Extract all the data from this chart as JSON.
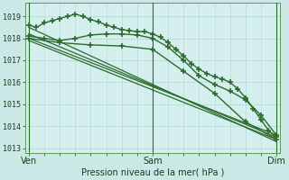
{
  "bg_color": "#cce8e6",
  "grid_color": "#b0d8d6",
  "line_color": "#2d6a2d",
  "marker_color": "#2d6a2d",
  "xlabel": "Pression niveau de la mer( hPa )",
  "xtick_labels": [
    "Ven",
    "Sam",
    "Dim"
  ],
  "xtick_positions": [
    0,
    16,
    32
  ],
  "ylim": [
    1012.8,
    1019.6
  ],
  "yticks": [
    1013,
    1014,
    1015,
    1016,
    1017,
    1018,
    1019
  ],
  "series": [
    {
      "x": [
        0,
        1,
        2,
        3,
        4,
        5,
        6,
        7,
        8,
        9,
        10,
        11,
        12,
        13,
        14,
        15,
        16,
        17,
        18,
        19,
        20,
        21,
        22,
        23,
        24,
        25,
        26,
        27,
        28,
        29,
        30,
        31,
        32
      ],
      "y": [
        1018.6,
        1018.5,
        1018.7,
        1018.8,
        1018.9,
        1019.0,
        1019.1,
        1019.0,
        1018.85,
        1018.75,
        1018.6,
        1018.5,
        1018.4,
        1018.35,
        1018.3,
        1018.3,
        1018.2,
        1018.05,
        1017.8,
        1017.5,
        1017.2,
        1016.85,
        1016.6,
        1016.4,
        1016.25,
        1016.15,
        1016.0,
        1015.7,
        1015.3,
        1014.8,
        1014.3,
        1013.8,
        1013.5
      ],
      "marker": "+",
      "linewidth": 1.0,
      "markersize": 5
    },
    {
      "x": [
        0,
        32
      ],
      "y": [
        1018.5,
        1013.3
      ],
      "marker": null,
      "linewidth": 0.9,
      "markersize": 0
    },
    {
      "x": [
        0,
        32
      ],
      "y": [
        1018.2,
        1013.5
      ],
      "marker": null,
      "linewidth": 0.9,
      "markersize": 0
    },
    {
      "x": [
        0,
        32
      ],
      "y": [
        1018.0,
        1013.6
      ],
      "marker": null,
      "linewidth": 0.9,
      "markersize": 0
    },
    {
      "x": [
        0,
        32
      ],
      "y": [
        1017.9,
        1013.4
      ],
      "marker": null,
      "linewidth": 0.9,
      "markersize": 0
    },
    {
      "x": [
        0,
        2,
        4,
        6,
        8,
        10,
        12,
        14,
        16,
        18,
        20,
        22,
        24,
        26,
        28,
        30,
        32
      ],
      "y": [
        1018.1,
        1018.0,
        1017.9,
        1018.0,
        1018.15,
        1018.2,
        1018.2,
        1018.15,
        1018.0,
        1017.6,
        1017.0,
        1016.3,
        1015.9,
        1015.6,
        1015.2,
        1014.5,
        1013.6
      ],
      "marker": "+",
      "linewidth": 1.0,
      "markersize": 5
    },
    {
      "x": [
        0,
        4,
        8,
        12,
        16,
        20,
        24,
        28,
        32
      ],
      "y": [
        1018.0,
        1017.8,
        1017.7,
        1017.65,
        1017.5,
        1016.5,
        1015.5,
        1014.2,
        1013.4
      ],
      "marker": "+",
      "linewidth": 1.0,
      "markersize": 5
    }
  ],
  "vlines": [
    0,
    16,
    32
  ],
  "plot_area_bg": "#d4efed"
}
